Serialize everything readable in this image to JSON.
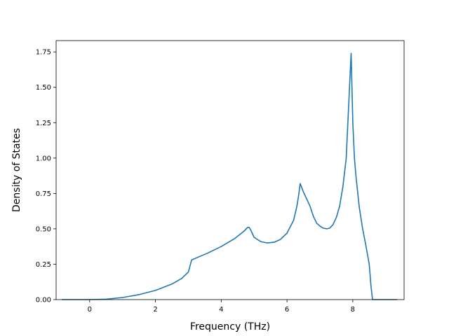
{
  "chart_data": {
    "type": "line",
    "title": "",
    "xlabel": "Frequency (THz)",
    "ylabel": "Density of States",
    "xlim": [
      -1.02,
      9.56
    ],
    "ylim": [
      0,
      1.83
    ],
    "xticks": [
      0,
      2,
      4,
      6,
      8
    ],
    "xtick_labels": [
      "0",
      "2",
      "4",
      "6",
      "8"
    ],
    "yticks": [
      0,
      0.25,
      0.5,
      0.75,
      1.0,
      1.25,
      1.5,
      1.75
    ],
    "ytick_labels": [
      "0.00",
      "0.25",
      "0.50",
      "0.75",
      "1.00",
      "1.25",
      "1.50",
      "1.75"
    ],
    "grid": false,
    "line_color": "#1f77b4",
    "series": [
      {
        "x": [
          -0.85,
          -0.5,
          0.0,
          0.5,
          1.0,
          1.5,
          2.0,
          2.5,
          2.8,
          3.0,
          3.1,
          3.3,
          3.6,
          4.0,
          4.4,
          4.7,
          4.8,
          4.85,
          4.9,
          5.0,
          5.2,
          5.4,
          5.6,
          5.8,
          6.0,
          6.2,
          6.3,
          6.35,
          6.4,
          6.5,
          6.6,
          6.7,
          6.8,
          6.9,
          7.0,
          7.1,
          7.2,
          7.3,
          7.4,
          7.5,
          7.6,
          7.7,
          7.8,
          7.9,
          7.95,
          8.0,
          8.05,
          8.1,
          8.2,
          8.3,
          8.4,
          8.5,
          8.55,
          8.6,
          9.0,
          9.35
        ],
        "y": [
          0.0,
          0.0,
          0.0,
          0.003,
          0.015,
          0.035,
          0.065,
          0.11,
          0.15,
          0.195,
          0.28,
          0.3,
          0.33,
          0.375,
          0.43,
          0.485,
          0.51,
          0.51,
          0.49,
          0.44,
          0.41,
          0.4,
          0.405,
          0.425,
          0.47,
          0.56,
          0.66,
          0.73,
          0.82,
          0.76,
          0.71,
          0.66,
          0.59,
          0.54,
          0.52,
          0.505,
          0.5,
          0.505,
          0.53,
          0.58,
          0.66,
          0.8,
          1.0,
          1.5,
          1.74,
          1.25,
          1.0,
          0.86,
          0.65,
          0.5,
          0.38,
          0.25,
          0.1,
          0.0,
          0.0,
          0.0
        ]
      }
    ]
  }
}
